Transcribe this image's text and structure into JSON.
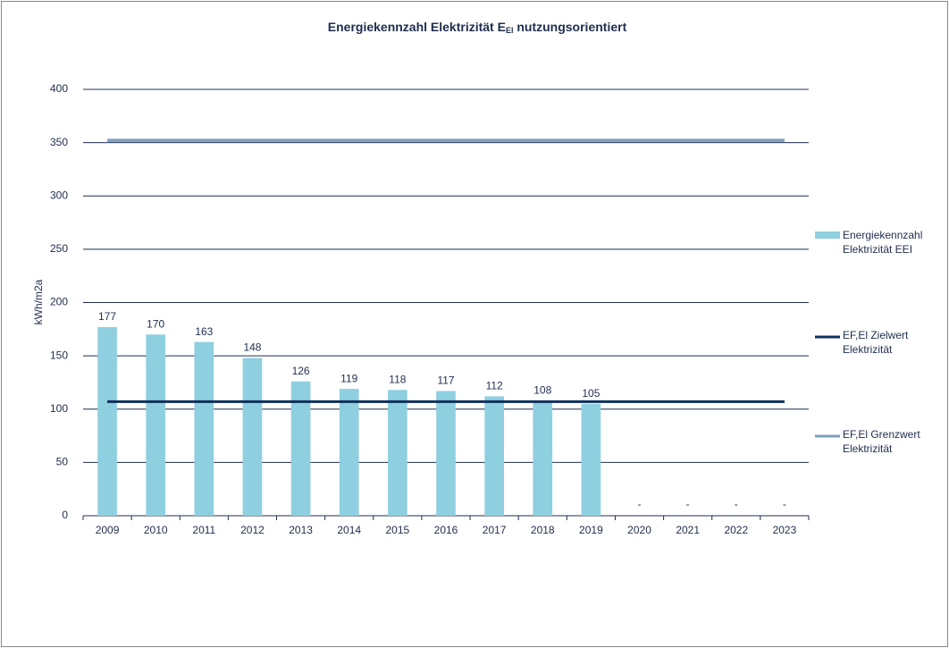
{
  "chart_data": {
    "type": "bar",
    "title": [
      "Energiekennzahl Elektrizität E",
      "El",
      " nutzungsorientiert"
    ],
    "y_label": "kWh/m2a",
    "categories": [
      "2009",
      "2010",
      "2011",
      "2012",
      "2013",
      "2014",
      "2015",
      "2016",
      "2017",
      "2018",
      "2019",
      "2020",
      "2021",
      "2022",
      "2023"
    ],
    "series": [
      {
        "name": "Energiekennzahl Elektrizität EEI",
        "type": "bar",
        "color": "#8ecfe0",
        "values": [
          177,
          170,
          163,
          148,
          126,
          119,
          118,
          117,
          112,
          108,
          105,
          null,
          null,
          null,
          null
        ],
        "value_labels": [
          "177",
          "170",
          "163",
          "148",
          "126",
          "119",
          "118",
          "117",
          "112",
          "108",
          "105",
          "-",
          "-",
          "-",
          "-"
        ]
      },
      {
        "name": "EF,El Zielwert Elektrizität",
        "type": "line",
        "color": "#0f2f5c",
        "values": [
          107,
          107,
          107,
          107,
          107,
          107,
          107,
          107,
          107,
          107,
          107,
          107,
          107,
          107,
          107
        ]
      },
      {
        "name": "EF,El Grenzwert Elektrizität",
        "type": "line",
        "color": "#7f9fc0",
        "values": [
          352,
          352,
          352,
          352,
          352,
          352,
          352,
          352,
          352,
          352,
          352,
          352,
          352,
          352,
          352
        ]
      }
    ],
    "ylim": [
      0,
      400
    ],
    "yticks": [
      0,
      50,
      100,
      150,
      200,
      250,
      300,
      350,
      400
    ],
    "grid": true,
    "legend": "right"
  }
}
